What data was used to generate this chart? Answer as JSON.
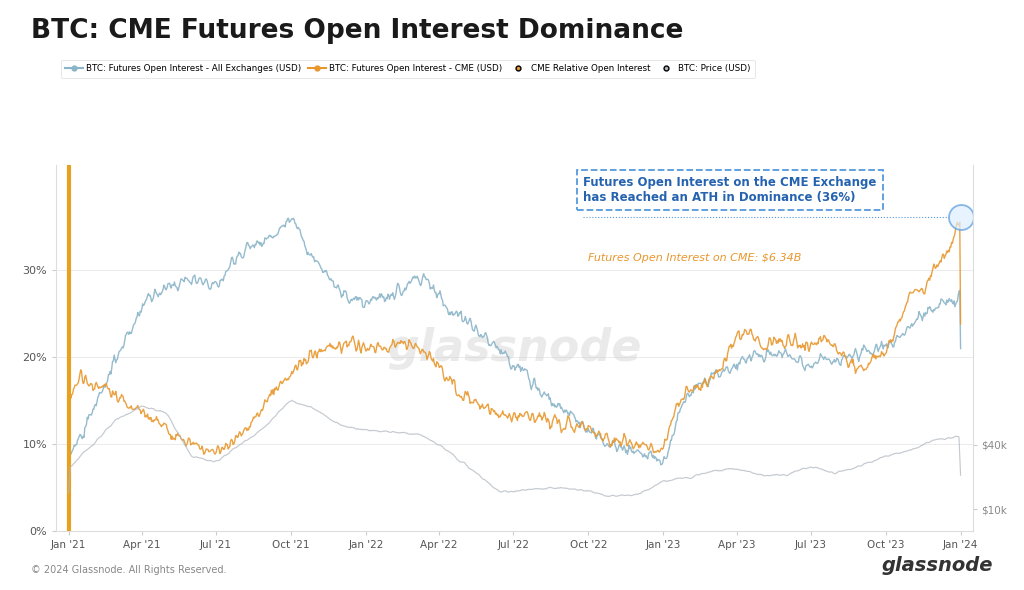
{
  "title": "BTC: CME Futures Open Interest Dominance",
  "background_color": "#ffffff",
  "plot_bg_color": "#ffffff",
  "annotation_title": "Futures Open Interest on the CME Exchange\nhas Reached an ATH in Dominance (36%)",
  "annotation_subtitle": "Futures Open Interest on CME: $6.34B",
  "annotation_title_color": "#2563b0",
  "annotation_subtitle_color": "#e8972d",
  "yticks_left": [
    0,
    10,
    20,
    30
  ],
  "ytick_labels_left": [
    "0%",
    "10%",
    "20%",
    "30%"
  ],
  "yticks_right": [
    10000,
    40000
  ],
  "ytick_labels_right": [
    "$10k",
    "$40k"
  ],
  "xticks": [
    "Jan '21",
    "Apr '21",
    "Jul '21",
    "Oct '21",
    "Jan '22",
    "Apr '22",
    "Jul '22",
    "Oct '22",
    "Jan '23",
    "Apr '23",
    "Jul '23",
    "Oct '23",
    "Jan '24"
  ],
  "copyright": "© 2024 Glassnode. All Rights Reserved.",
  "border_color": "#dddddd",
  "color_all_oi": "#8ab4c8",
  "color_cme_oi": "#e8972d",
  "color_price": "#b0b8c0",
  "color_vline": "#e8a020",
  "color_annotation_border": "#5599dd",
  "color_annotation_line": "#5599dd",
  "ylim_left": [
    0,
    42
  ],
  "ylim_right": [
    0,
    170000
  ],
  "price_scale_max": 70000,
  "annotation_ath_level": 36
}
